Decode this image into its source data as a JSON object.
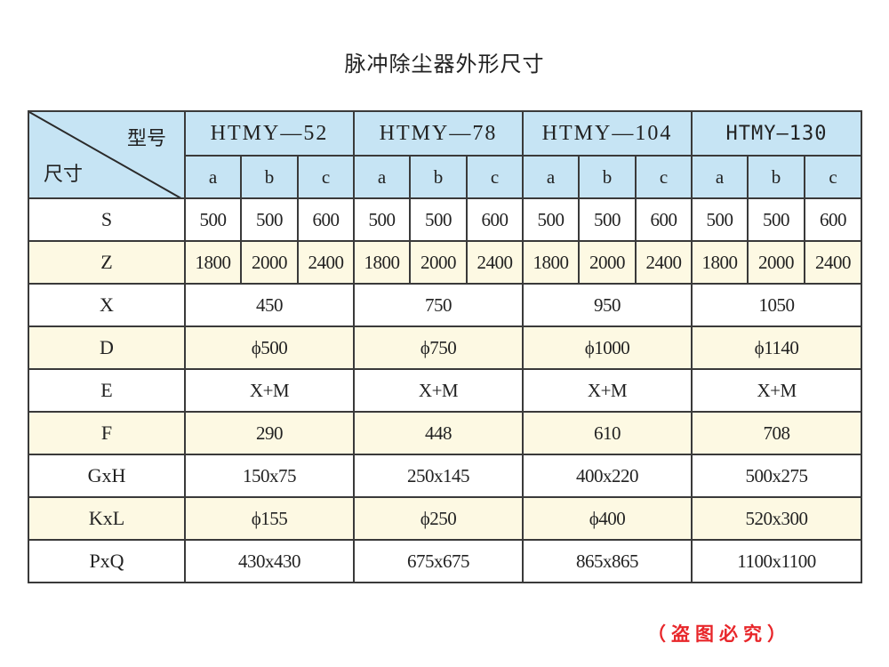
{
  "title": "脉冲除尘器外形尺寸",
  "header": {
    "corner_top": "型号",
    "corner_bottom": "尺寸",
    "models": [
      "HTMY—52",
      "HTMY—78",
      "HTMY—104",
      "HTMY—130"
    ],
    "sub_columns": [
      "a",
      "b",
      "c"
    ]
  },
  "rows": [
    {
      "label": "S",
      "values": [
        "500",
        "500",
        "600",
        "500",
        "500",
        "600",
        "500",
        "500",
        "600",
        "500",
        "500",
        "600"
      ]
    },
    {
      "label": "Z",
      "values": [
        "1800",
        "2000",
        "2400",
        "1800",
        "2000",
        "2400",
        "1800",
        "2000",
        "2400",
        "1800",
        "2000",
        "2400"
      ]
    },
    {
      "label": "X",
      "values": [
        "450",
        "750",
        "950",
        "1050"
      ]
    },
    {
      "label": "D",
      "values": [
        "ϕ500",
        "ϕ750",
        "ϕ1000",
        "ϕ1140"
      ]
    },
    {
      "label": "E",
      "values": [
        "X+M",
        "X+M",
        "X+M",
        "X+M"
      ]
    },
    {
      "label": "F",
      "values": [
        "290",
        "448",
        "610",
        "708"
      ]
    },
    {
      "label": "GxH",
      "values": [
        "150x75",
        "250x145",
        "400x220",
        "500x275"
      ]
    },
    {
      "label": "KxL",
      "values": [
        "ϕ155",
        "ϕ250",
        "ϕ400",
        "520x300"
      ]
    },
    {
      "label": "PxQ",
      "values": [
        "430x430",
        "675x675",
        "865x865",
        "1100x1100"
      ]
    }
  ],
  "colors": {
    "header_bg": "#c6e4f4",
    "alt_row_bg": "#fdf9e3",
    "note": "#e8262a"
  },
  "note": "（盗图必究）"
}
